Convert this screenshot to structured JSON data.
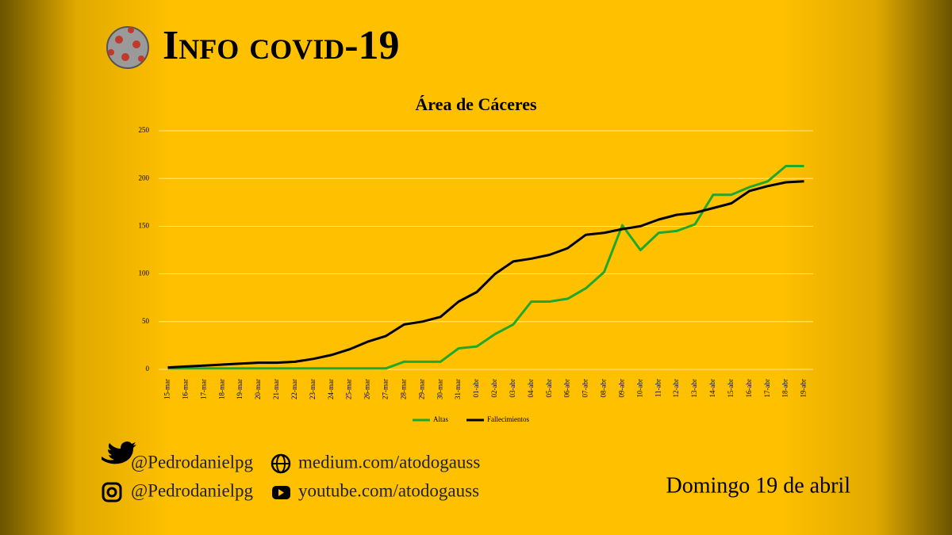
{
  "header": {
    "title": "Info covid-19"
  },
  "chart_data": {
    "type": "line",
    "title": "Área de Cáceres",
    "categories": [
      "15-mar",
      "16-mar",
      "17-mar",
      "18-mar",
      "19-mar",
      "20-mar",
      "21-mar",
      "22-mar",
      "23-mar",
      "24-mar",
      "25-mar",
      "26-mar",
      "27-mar",
      "28-mar",
      "29-mar",
      "30-mar",
      "31-mar",
      "01-abr",
      "02-abr",
      "03-abr",
      "04-abr",
      "05-abr",
      "06-abr",
      "07-abr",
      "08-abr",
      "09-abr",
      "10-abr",
      "11-abr",
      "12-abr",
      "13-abr",
      "14-abr",
      "15-abr",
      "16-abr",
      "17-abr",
      "18-abr",
      "19-abr"
    ],
    "series": [
      {
        "name": "Altas",
        "color": "#1fa82b",
        "values": [
          1,
          1,
          1,
          1,
          1,
          1,
          1,
          1,
          1,
          1,
          1,
          1,
          1,
          8,
          8,
          8,
          22,
          24,
          37,
          47,
          71,
          71,
          74,
          85,
          102,
          151,
          125,
          143,
          145,
          152,
          183,
          183,
          191,
          197,
          213,
          213
        ]
      },
      {
        "name": "Fallecimientos",
        "color": "#000000",
        "values": [
          2,
          3,
          4,
          5,
          6,
          7,
          7,
          8,
          11,
          15,
          21,
          29,
          35,
          47,
          50,
          55,
          71,
          81,
          100,
          113,
          116,
          120,
          127,
          141,
          143,
          147,
          150,
          157,
          162,
          164,
          169,
          174,
          187,
          192,
          196,
          197
        ]
      }
    ],
    "ylim": [
      0,
      250
    ],
    "yticks": [
      0,
      50,
      100,
      150,
      200,
      250
    ],
    "grid": true,
    "legend": "bottom"
  },
  "footer": {
    "twitter": "@Pedrodanielpg",
    "instagram": "@Pedrodanielpg",
    "medium": "medium.com/atodogauss",
    "youtube": "youtube.com/atodogauss",
    "date": "Domingo 19 de abril"
  }
}
